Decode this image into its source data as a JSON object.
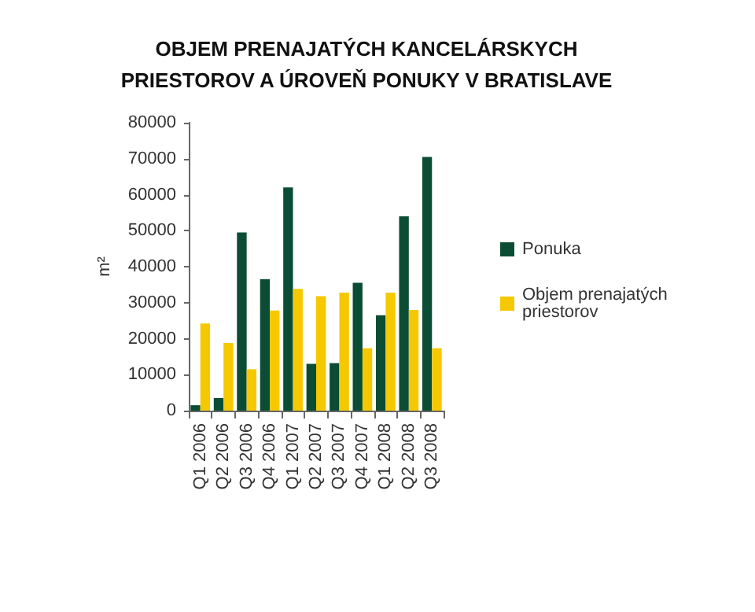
{
  "chart_data": {
    "type": "bar",
    "title": "OBJEM PRENAJATÝCH KANCELÁRSKYCH\nPRIESTOROV A ÚROVEŇ PONUKY V BRATISLAVE",
    "ylabel": "m²",
    "categories": [
      "Q1 2006",
      "Q2 2006",
      "Q3 2006",
      "Q4 2006",
      "Q1 2007",
      "Q2 2007",
      "Q3 2007",
      "Q4 2007",
      "Q1 2008",
      "Q2 2008",
      "Q3 2008"
    ],
    "series": [
      {
        "name": "Ponuka",
        "color": "#0b4d34",
        "values": [
          1500,
          3500,
          49500,
          36500,
          62000,
          13000,
          13200,
          35500,
          26500,
          54000,
          70500
        ]
      },
      {
        "name": "Objem prenajatých priestorov",
        "color": "#f5c800",
        "values": [
          24200,
          18800,
          11500,
          27800,
          33800,
          31800,
          32800,
          17300,
          32800,
          28000,
          17300
        ]
      }
    ],
    "ylim": [
      0,
      80000
    ],
    "yticks": [
      0,
      10000,
      20000,
      30000,
      40000,
      50000,
      60000,
      70000,
      80000
    ],
    "grid": false,
    "legend": "right"
  }
}
